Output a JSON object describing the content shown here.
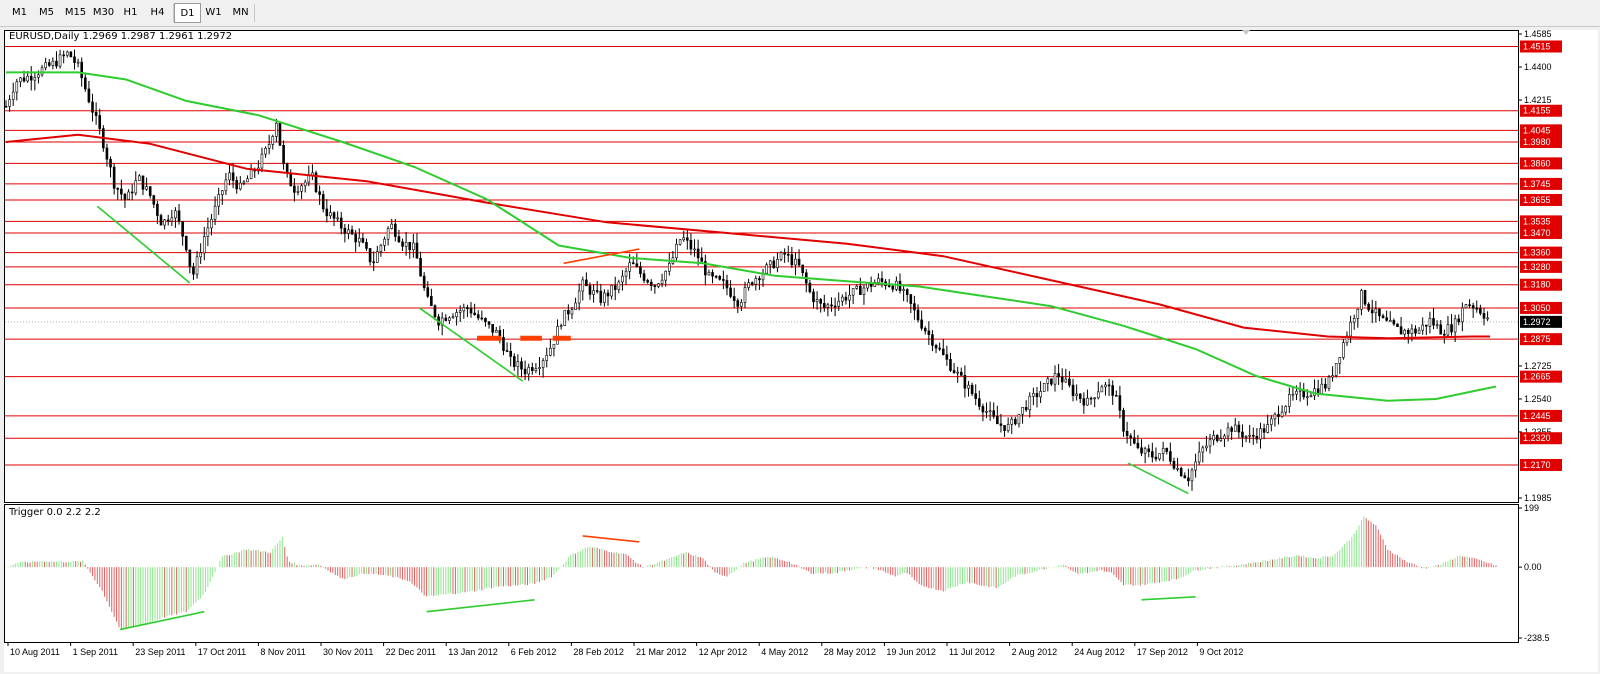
{
  "toolbar": {
    "timeframes": [
      {
        "label": "M1",
        "active": false
      },
      {
        "label": "M5",
        "active": false
      },
      {
        "label": "M15",
        "active": false
      },
      {
        "label": "M30",
        "active": false
      },
      {
        "label": "H1",
        "active": false
      },
      {
        "label": "H4",
        "active": false
      },
      {
        "label": "D1",
        "active": true
      },
      {
        "label": "W1",
        "active": false
      },
      {
        "label": "MN",
        "active": false
      }
    ]
  },
  "main_chart": {
    "header": "EURUSD,Daily  1.2969 1.2987 1.2961 1.2972",
    "current_price": "1.2972"
  },
  "indicator": {
    "header": "Trigger 0.0 2.2 2.2"
  },
  "chart_data": [
    {
      "type": "candlestick",
      "title": "EURUSD,Daily",
      "symbol": "EURUSD",
      "ohlc_last": {
        "open": 1.2969,
        "high": 1.2987,
        "low": 1.2961,
        "close": 1.2972
      },
      "ylim": [
        1.1985,
        1.4585
      ],
      "y_ticks": [
        "1.4585",
        "1.4400",
        "1.4215",
        "1.2725",
        "1.2540",
        "1.2355",
        "1.1985"
      ],
      "x_ticks": [
        "10 Aug 2011",
        "1 Sep 2011",
        "23 Sep 2011",
        "17 Oct 2011",
        "8 Nov 2011",
        "30 Nov 2011",
        "22 Dec 2011",
        "13 Jan 2012",
        "6 Feb 2012",
        "28 Feb 2012",
        "21 Mar 2012",
        "12 Apr 2012",
        "4 May 2012",
        "28 May 2012",
        "19 Jun 2012",
        "11 Jul 2012",
        "2 Aug 2012",
        "24 Aug 2012",
        "17 Sep 2012",
        "9 Oct 2012"
      ],
      "horizontal_levels": [
        "1.4515",
        "1.4155",
        "1.4045",
        "1.3980",
        "1.3860",
        "1.3745",
        "1.3655",
        "1.3535",
        "1.3470",
        "1.3360",
        "1.3280",
        "1.3180",
        "1.3050",
        "1.2875",
        "1.2665",
        "1.2445",
        "1.2320",
        "1.2170"
      ],
      "current_price": 1.2972,
      "series": [
        {
          "color": "#e00000",
          "points": [
            [
              0,
              1.398
            ],
            [
              60,
              1.402
            ],
            [
              120,
              1.397
            ],
            [
              200,
              1.383
            ],
            [
              300,
              1.376
            ],
            [
              400,
              1.364
            ],
            [
              500,
              1.353
            ],
            [
              600,
              1.347
            ],
            [
              700,
              1.341
            ],
            [
              780,
              1.334
            ],
            [
              860,
              1.322
            ],
            [
              960,
              1.307
            ],
            [
              1030,
              1.294
            ],
            [
              1100,
              1.289
            ],
            [
              1150,
              1.288
            ],
            [
              1220,
              1.289
            ],
            [
              1235,
              1.289
            ]
          ]
        },
        {
          "color": "#2ecc2e",
          "points": [
            [
              0,
              1.437
            ],
            [
              60,
              1.437
            ],
            [
              100,
              1.433
            ],
            [
              150,
              1.421
            ],
            [
              210,
              1.413
            ],
            [
              280,
              1.398
            ],
            [
              340,
              1.384
            ],
            [
              400,
              1.366
            ],
            [
              460,
              1.34
            ],
            [
              520,
              1.333
            ],
            [
              580,
              1.33
            ],
            [
              640,
              1.323
            ],
            [
              700,
              1.32
            ],
            [
              760,
              1.317
            ],
            [
              820,
              1.311
            ],
            [
              870,
              1.306
            ],
            [
              930,
              1.295
            ],
            [
              990,
              1.282
            ],
            [
              1040,
              1.267
            ],
            [
              1090,
              1.257
            ],
            [
              1150,
              1.253
            ],
            [
              1190,
              1.254
            ],
            [
              1240,
              1.261
            ]
          ]
        }
      ],
      "trend_lines": [
        {
          "color": "#2ecc2e",
          "from": [
            76,
            1.362
          ],
          "to": [
            153,
            1.319
          ]
        },
        {
          "color": "#2ecc2e",
          "from": [
            344,
            1.305
          ],
          "to": [
            430,
            1.264
          ]
        },
        {
          "color": "#2ecc2e",
          "from": [
            934,
            1.218
          ],
          "to": [
            984,
            1.201
          ]
        },
        {
          "color": "#ff4000",
          "from": [
            464,
            1.33
          ],
          "to": [
            527,
            1.338
          ]
        }
      ],
      "level_markers": [
        {
          "color": "#ff4000",
          "from": [
            392,
            1.288
          ],
          "to": [
            412,
            1.288
          ]
        },
        {
          "color": "#ff4000",
          "from": [
            428,
            1.288
          ],
          "to": [
            446,
            1.288
          ]
        },
        {
          "color": "#ff4000",
          "from": [
            455,
            1.288
          ],
          "to": [
            470,
            1.288
          ]
        }
      ]
    },
    {
      "type": "bar",
      "title": "Trigger 0.0 2.2 2.2",
      "ylim": [
        -238.5,
        199
      ],
      "y_ticks": [
        "199",
        "0.00",
        "-238.5"
      ],
      "positive_color": "#8ee58e",
      "negative_color": "#e06060",
      "envelope": [
        [
          0,
          0
        ],
        [
          10,
          15
        ],
        [
          30,
          20
        ],
        [
          50,
          18
        ],
        [
          64,
          20
        ],
        [
          80,
          -80
        ],
        [
          95,
          -210
        ],
        [
          110,
          -200
        ],
        [
          130,
          -170
        ],
        [
          150,
          -150
        ],
        [
          165,
          -90
        ],
        [
          180,
          35
        ],
        [
          200,
          60
        ],
        [
          220,
          50
        ],
        [
          230,
          100
        ],
        [
          235,
          20
        ],
        [
          245,
          5
        ],
        [
          260,
          10
        ],
        [
          280,
          -40
        ],
        [
          300,
          -20
        ],
        [
          320,
          -30
        ],
        [
          335,
          -45
        ],
        [
          350,
          -100
        ],
        [
          370,
          -90
        ],
        [
          390,
          -80
        ],
        [
          410,
          -65
        ],
        [
          430,
          -60
        ],
        [
          440,
          -55
        ],
        [
          455,
          -30
        ],
        [
          470,
          40
        ],
        [
          485,
          70
        ],
        [
          500,
          55
        ],
        [
          515,
          45
        ],
        [
          530,
          0
        ],
        [
          550,
          25
        ],
        [
          565,
          50
        ],
        [
          580,
          30
        ],
        [
          590,
          -20
        ],
        [
          600,
          -30
        ],
        [
          615,
          15
        ],
        [
          635,
          35
        ],
        [
          650,
          20
        ],
        [
          670,
          -20
        ],
        [
          690,
          -20
        ],
        [
          700,
          -10
        ],
        [
          720,
          0
        ],
        [
          740,
          -30
        ],
        [
          750,
          -20
        ],
        [
          760,
          -60
        ],
        [
          780,
          -80
        ],
        [
          800,
          -50
        ],
        [
          810,
          -60
        ],
        [
          825,
          -70
        ],
        [
          840,
          -30
        ],
        [
          860,
          -10
        ],
        [
          880,
          10
        ],
        [
          890,
          -20
        ],
        [
          900,
          -20
        ],
        [
          910,
          -10
        ],
        [
          920,
          -20
        ],
        [
          930,
          -60
        ],
        [
          945,
          -60
        ],
        [
          960,
          -50
        ],
        [
          975,
          -40
        ],
        [
          990,
          -10
        ],
        [
          1010,
          0
        ],
        [
          1030,
          10
        ],
        [
          1045,
          20
        ],
        [
          1060,
          30
        ],
        [
          1075,
          40
        ],
        [
          1090,
          30
        ],
        [
          1105,
          40
        ],
        [
          1120,
          100
        ],
        [
          1130,
          170
        ],
        [
          1140,
          140
        ],
        [
          1150,
          60
        ],
        [
          1165,
          20
        ],
        [
          1180,
          -5
        ],
        [
          1195,
          10
        ],
        [
          1210,
          40
        ],
        [
          1225,
          25
        ],
        [
          1240,
          5
        ]
      ],
      "trend_lines": [
        {
          "color": "#2ecc2e",
          "from": [
            95,
            -210
          ],
          "to": [
            165,
            -150
          ]
        },
        {
          "color": "#2ecc2e",
          "from": [
            350,
            -150
          ],
          "to": [
            440,
            -110
          ]
        },
        {
          "color": "#2ecc2e",
          "from": [
            945,
            -110
          ],
          "to": [
            990,
            -100
          ]
        },
        {
          "color": "#ff4000",
          "from": [
            480,
            105
          ],
          "to": [
            527,
            85
          ]
        }
      ]
    }
  ]
}
